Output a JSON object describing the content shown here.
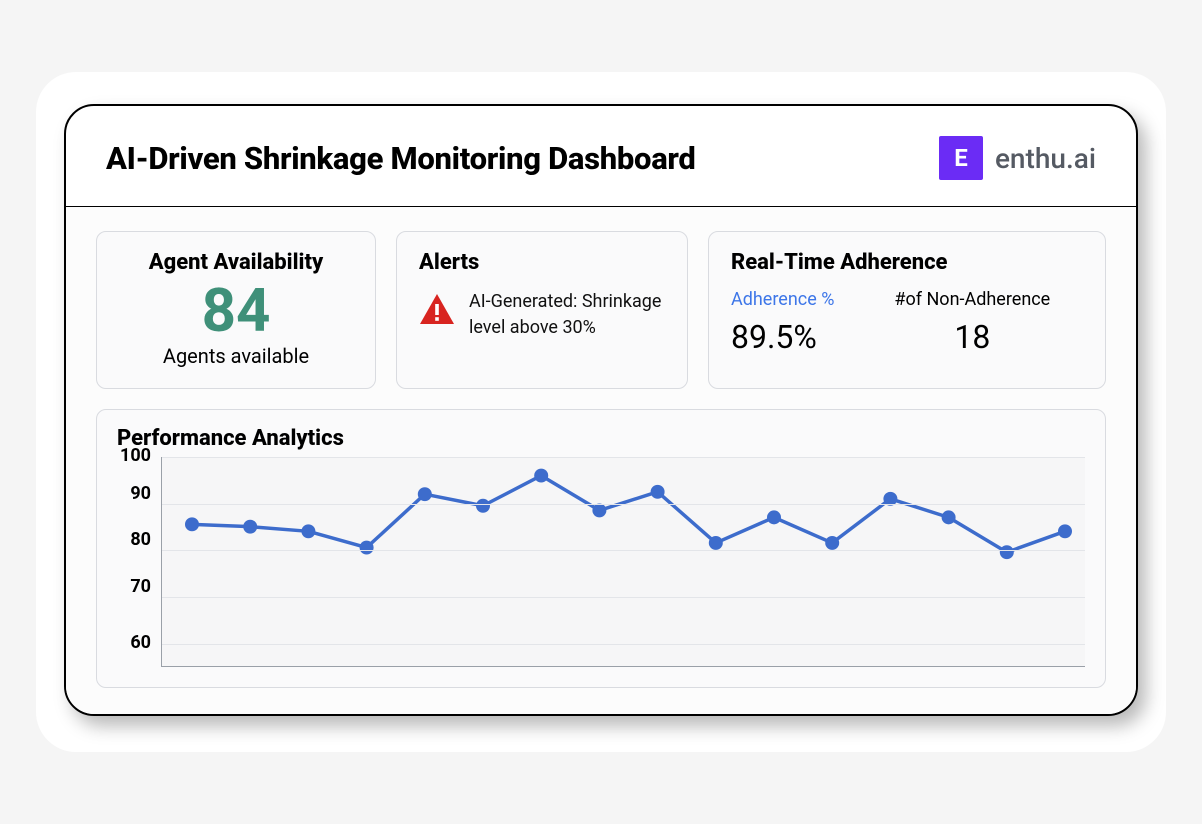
{
  "header": {
    "title": "AI-Driven Shrinkage Monitoring Dashboard",
    "brand_badge": "E",
    "brand_name": "enthu.ai",
    "brand_badge_bg": "#6b2cf5"
  },
  "availability": {
    "title": "Agent Availability",
    "value": "84",
    "value_color": "#3f9079",
    "subtitle": "Agents available"
  },
  "alerts": {
    "title": "Alerts",
    "icon_color": "#d82420",
    "text": "AI-Generated: Shrinkage level above 30%"
  },
  "adherence": {
    "title": "Real-Time Adherence",
    "col1_label": "Adherence %",
    "col1_value": "89.5%",
    "col1_label_color": "#3d76e8",
    "col2_label": "#of Non-Adherence",
    "col2_value": "18"
  },
  "chart": {
    "type": "line",
    "title": "Performance Analytics",
    "ylim": [
      55,
      100
    ],
    "yticks": [
      100,
      90,
      80,
      70,
      60
    ],
    "line_color": "#3d6ccc",
    "marker_color": "#3d6ccc",
    "marker_radius": 7,
    "line_width": 3.5,
    "grid_color": "#e3e5e9",
    "axis_color": "#9aa0a8",
    "background_color": "#f6f6f7",
    "values": [
      85.5,
      85,
      84,
      80.5,
      92,
      89.5,
      96,
      88.5,
      92.5,
      81.5,
      87,
      81.5,
      91,
      87,
      79.5,
      84
    ]
  }
}
